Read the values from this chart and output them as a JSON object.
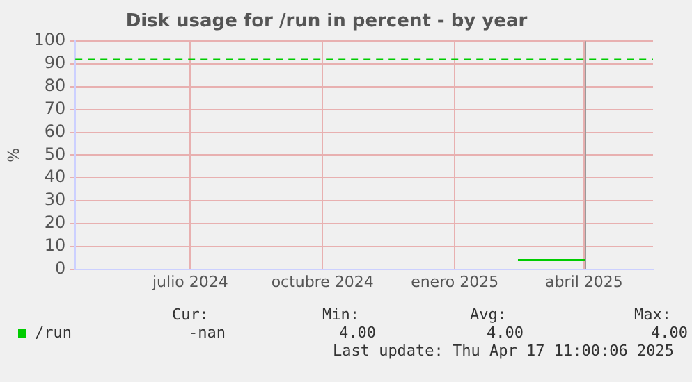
{
  "chart_data": {
    "type": "step",
    "title": "Disk usage for /run in percent - by year",
    "ylabel": "%",
    "x": [
      "2025-03-01",
      "2025-04-17"
    ],
    "series": [
      {
        "name": "/run",
        "color": "#00cc00",
        "values": [
          4,
          4
        ]
      }
    ],
    "xlim": [
      "2024-04-27",
      "2025-06-03"
    ],
    "xticks": [
      {
        "value": "2024-07-16",
        "label": "julio 2024"
      },
      {
        "value": "2024-10-16",
        "label": "octubre 2024"
      },
      {
        "value": "2025-01-16",
        "label": "enero 2025"
      },
      {
        "value": "2025-04-16",
        "label": "abril 2025"
      }
    ],
    "ylim": [
      0,
      100
    ],
    "yticks": [
      0,
      10,
      20,
      30,
      40,
      50,
      60,
      70,
      80,
      90,
      100
    ],
    "grid": true,
    "legend": "bottom",
    "ref_lines": [
      {
        "axis": "y",
        "value": 92,
        "color": "#00cc00",
        "line_style": "dashed"
      },
      {
        "axis": "x",
        "value": "2025-04-17",
        "color": "#999999",
        "line_style": "solid"
      }
    ],
    "annotations": [
      "Cur:",
      "Min:",
      "Avg:",
      "Max:",
      "-nan",
      "4.00",
      "4.00",
      "4.00",
      "Last update: Thu Apr 17 11:00:06 2025"
    ]
  }
}
